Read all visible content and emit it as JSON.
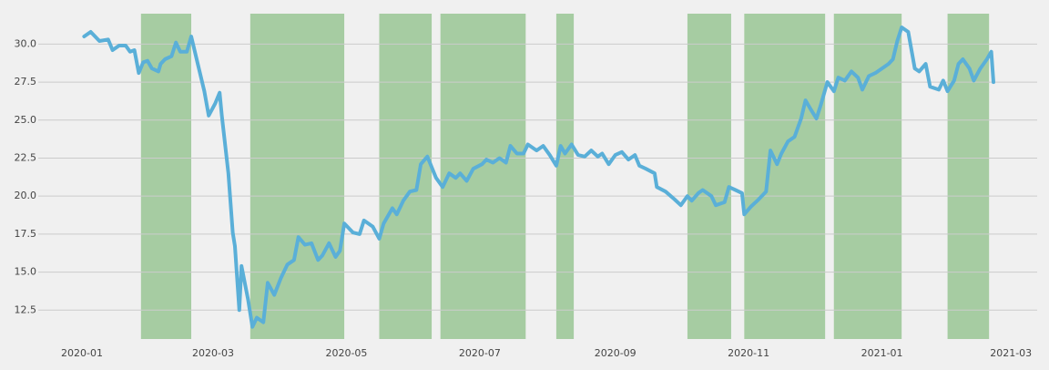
{
  "chart_data": {
    "type": "line",
    "x": [
      1,
      4,
      8,
      12,
      14,
      17,
      20,
      22,
      24,
      26,
      28,
      30,
      32,
      35,
      36,
      38,
      41,
      43,
      45,
      48,
      50,
      53,
      56,
      58,
      61,
      63,
      64,
      67,
      69,
      70,
      72,
      73,
      76,
      78,
      80,
      83,
      85,
      88,
      91,
      94,
      97,
      99,
      102,
      105,
      108,
      110,
      113,
      116,
      118,
      120,
      124,
      127,
      129,
      133,
      136,
      138,
      142,
      144,
      147,
      150,
      153,
      155,
      158,
      162,
      165,
      168,
      171,
      173,
      176,
      179,
      183,
      185,
      188,
      191,
      194,
      196,
      199,
      202,
      204,
      208,
      211,
      214,
      217,
      219,
      221,
      224,
      227,
      230,
      233,
      236,
      238,
      241,
      244,
      247,
      250,
      253,
      255,
      258,
      262,
      263,
      267,
      271,
      274,
      277,
      279,
      282,
      284,
      288,
      290,
      294,
      296,
      299,
      302,
      303,
      306,
      309,
      313,
      315,
      318,
      320,
      323,
      326,
      329,
      331,
      333,
      336,
      338,
      341,
      344,
      346,
      349,
      352,
      355,
      357,
      360,
      363,
      366,
      369,
      371,
      373,
      375,
      378,
      381,
      383,
      386,
      388,
      392,
      394,
      396,
      399,
      401,
      403,
      406,
      408,
      411,
      414,
      416,
      417
    ],
    "values": [
      30.5,
      30.8,
      30.2,
      30.3,
      29.6,
      29.9,
      29.9,
      29.5,
      29.6,
      28.1,
      28.8,
      28.9,
      28.4,
      28.2,
      28.7,
      29.0,
      29.2,
      30.1,
      29.5,
      29.5,
      30.5,
      28.7,
      26.9,
      25.3,
      26.1,
      26.8,
      25.3,
      21.5,
      17.6,
      16.7,
      12.5,
      15.4,
      13.2,
      11.4,
      12.0,
      11.7,
      14.3,
      13.5,
      14.6,
      15.5,
      15.8,
      17.3,
      16.8,
      16.9,
      15.8,
      16.1,
      16.9,
      16.0,
      16.4,
      18.2,
      17.6,
      17.5,
      18.4,
      18.0,
      17.2,
      18.2,
      19.2,
      18.8,
      19.7,
      20.3,
      20.4,
      22.1,
      22.6,
      21.2,
      20.6,
      21.5,
      21.2,
      21.5,
      21.0,
      21.8,
      22.1,
      22.4,
      22.2,
      22.5,
      22.2,
      23.3,
      22.8,
      22.8,
      23.4,
      23.0,
      23.3,
      22.7,
      22.0,
      23.3,
      22.8,
      23.4,
      22.7,
      22.6,
      23.0,
      22.6,
      22.8,
      22.1,
      22.7,
      22.9,
      22.4,
      22.7,
      22.0,
      21.8,
      21.5,
      20.6,
      20.3,
      19.8,
      19.4,
      20.0,
      19.7,
      20.2,
      20.4,
      20.0,
      19.4,
      19.6,
      20.6,
      20.4,
      20.2,
      18.8,
      19.3,
      19.7,
      20.3,
      23.0,
      22.1,
      22.8,
      23.6,
      23.9,
      25.1,
      26.3,
      25.8,
      25.1,
      26.0,
      27.5,
      26.9,
      27.8,
      27.6,
      28.2,
      27.8,
      27.0,
      27.9,
      28.1,
      28.4,
      28.7,
      29.0,
      30.2,
      31.1,
      30.8,
      28.4,
      28.2,
      28.7,
      27.2,
      27.0,
      27.6,
      26.9,
      27.6,
      28.7,
      29.0,
      28.4,
      27.6,
      28.4,
      29.0,
      29.5,
      27.5
    ],
    "color": "#5aafd8",
    "spans": [
      [
        27,
        50
      ],
      [
        77,
        120
      ],
      [
        136,
        160
      ],
      [
        164,
        203
      ],
      [
        217,
        225
      ],
      [
        277,
        297
      ],
      [
        303,
        340
      ],
      [
        344,
        375
      ],
      [
        396,
        415
      ]
    ],
    "span_color": "#a6cca2",
    "xlim": [
      -20,
      437
    ],
    "xticks": [
      {
        "value": 0,
        "label": "2020-01"
      },
      {
        "value": 60,
        "label": "2020-03"
      },
      {
        "value": 121,
        "label": "2020-05"
      },
      {
        "value": 182,
        "label": "2020-07"
      },
      {
        "value": 244,
        "label": "2020-09"
      },
      {
        "value": 305,
        "label": "2020-11"
      },
      {
        "value": 366,
        "label": "2021-01"
      },
      {
        "value": 425,
        "label": "2021-03"
      }
    ],
    "ylim": [
      10.6,
      32.0
    ],
    "yticks": [
      12.5,
      {
        "value": 15,
        "label": "15.0"
      },
      17.5,
      {
        "value": 20,
        "label": "20.0"
      },
      22.5,
      {
        "value": 25,
        "label": "25.0"
      },
      27.5,
      {
        "value": 30,
        "label": "30.0"
      }
    ],
    "grid": true
  }
}
